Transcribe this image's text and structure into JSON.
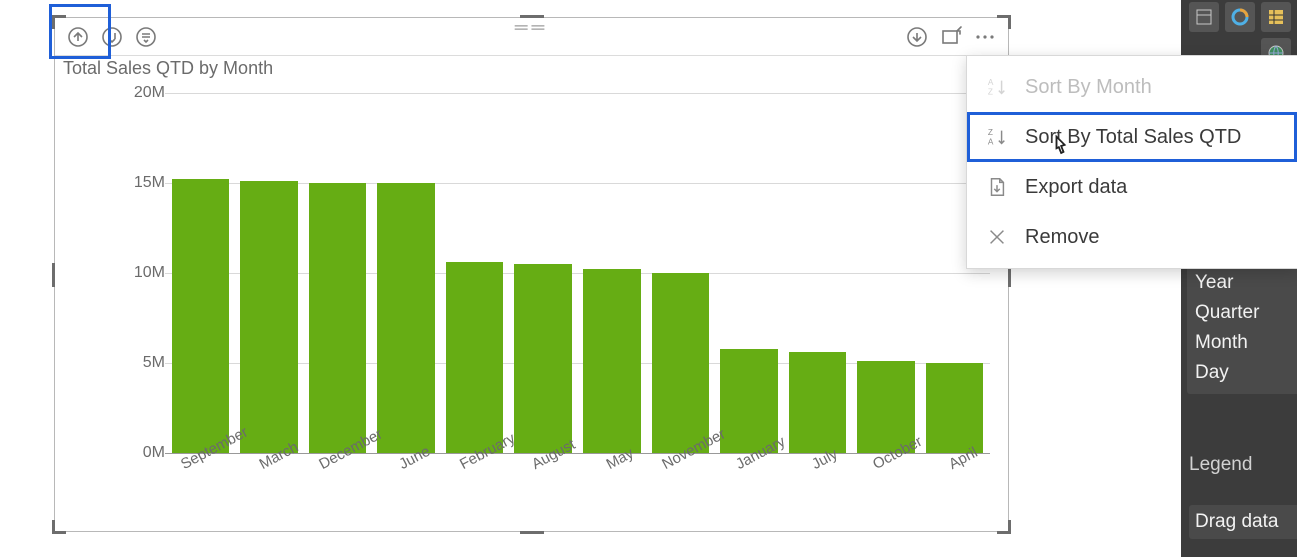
{
  "visual": {
    "title": "Total Sales QTD by Month",
    "toolbar": {
      "drillup": "drill-up",
      "drilldown": "drill-down",
      "expand": "expand-down",
      "download": "drill-mode",
      "focus": "focus-mode",
      "more": "more-options"
    }
  },
  "chart": {
    "type": "bar",
    "bar_color": "#66AD14",
    "background_color": "#ffffff",
    "grid_color": "#d9d9d9",
    "ymax": 20,
    "yticks": [
      {
        "value": 0,
        "label": "0M"
      },
      {
        "value": 5,
        "label": "5M"
      },
      {
        "value": 10,
        "label": "10M"
      },
      {
        "value": 15,
        "label": "15M"
      },
      {
        "value": 20,
        "label": "20M"
      }
    ],
    "categories": [
      "September",
      "March",
      "December",
      "June",
      "February",
      "August",
      "May",
      "November",
      "January",
      "July",
      "October",
      "April"
    ],
    "values": [
      15.2,
      15.1,
      15.0,
      15.0,
      10.6,
      10.5,
      10.2,
      10.0,
      5.8,
      5.6,
      5.1,
      5.0
    ],
    "label_fontsize": 15,
    "label_rotation_deg": -28
  },
  "menu": {
    "items": [
      {
        "key": "sort-month",
        "label": "Sort By Month",
        "icon": "sort-az",
        "disabled": true,
        "selected": false
      },
      {
        "key": "sort-sales",
        "label": "Sort By Total Sales QTD",
        "icon": "sort-za",
        "disabled": false,
        "selected": true
      },
      {
        "key": "export",
        "label": "Export data",
        "icon": "export",
        "disabled": false,
        "selected": false
      },
      {
        "key": "remove",
        "label": "Remove",
        "icon": "close",
        "disabled": false,
        "selected": false
      }
    ]
  },
  "fields": {
    "date_levels": [
      "Year",
      "Quarter",
      "Month",
      "Day"
    ],
    "legend_label": "Legend",
    "drag_hint": "Drag data"
  }
}
